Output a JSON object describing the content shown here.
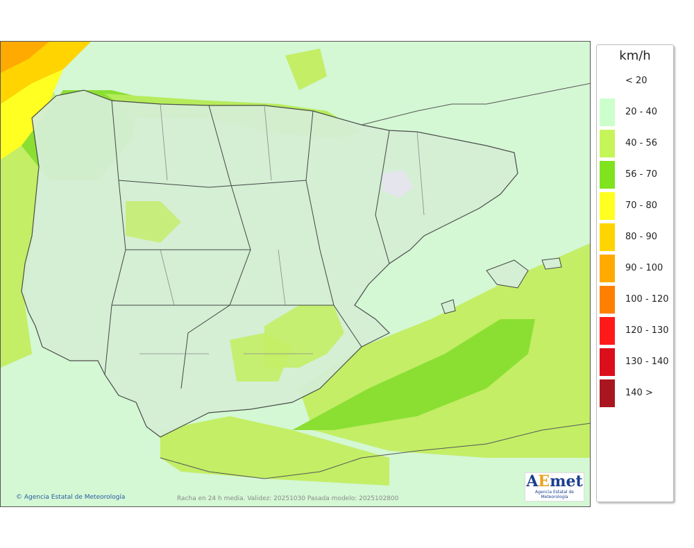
{
  "legend": {
    "unit": "km/h",
    "items": [
      {
        "label": "< 20",
        "color": "#ffffff"
      },
      {
        "label": "20 - 40",
        "color": "#ccffcc"
      },
      {
        "label": "40 - 56",
        "color": "#c6f55a"
      },
      {
        "label": "56 - 70",
        "color": "#7fe31e"
      },
      {
        "label": "70 - 80",
        "color": "#ffff22"
      },
      {
        "label": "80 - 90",
        "color": "#ffd400"
      },
      {
        "label": "90 - 100",
        "color": "#ffaa00"
      },
      {
        "label": "100 - 120",
        "color": "#ff8000"
      },
      {
        "label": "120 - 130",
        "color": "#ff1a1a"
      },
      {
        "label": "130 - 140",
        "color": "#dd0e1c"
      },
      {
        "label": "140 >",
        "color": "#aa1620"
      }
    ]
  },
  "credit": "© Agencia Estatal de Meteorología",
  "footer": "Racha en 24 h media. Validez: 20251030 Pasada modelo: 2025102800",
  "logo": {
    "mark_a": "A",
    "mark_e": "E",
    "mark_rest": "met",
    "subtitle": "Agencia Estatal de Meteorología"
  }
}
